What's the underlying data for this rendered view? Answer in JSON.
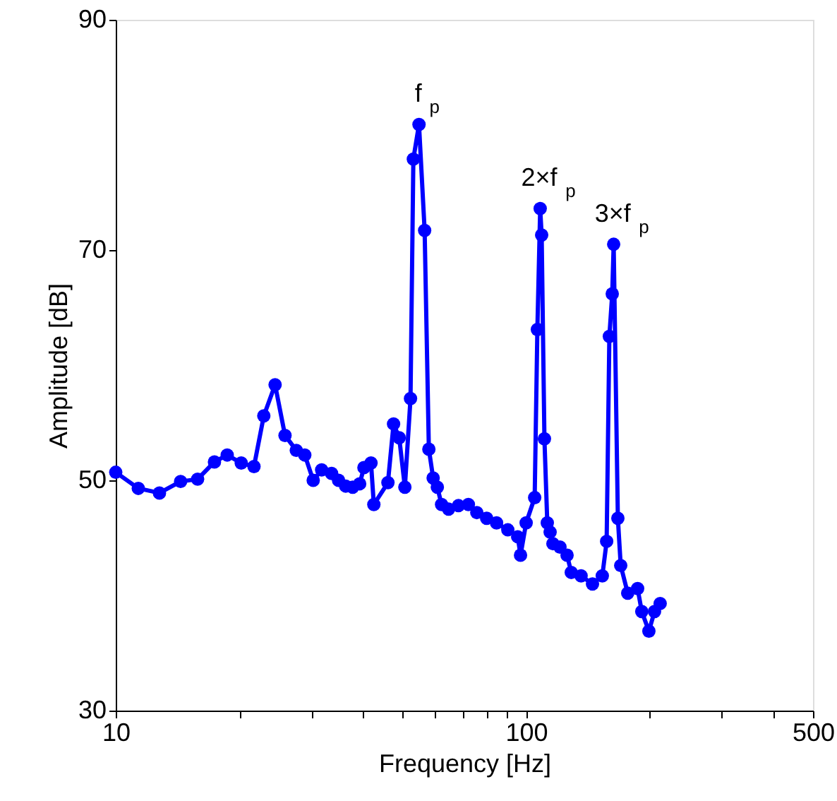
{
  "chart_data": {
    "type": "line",
    "xlabel": "Frequency [Hz]",
    "ylabel": "Amplitude [dB]",
    "x": [
      10,
      11.35,
      12.78,
      14.39,
      15.83,
      17.4,
      18.69,
      20.22,
      21.72,
      22.95,
      24.45,
      25.85,
      27.54,
      28.88,
      30.28,
      31.75,
      33.57,
      34.91,
      36.33,
      37.79,
      39.3,
      40.25,
      41.88,
      42.55,
      46.05,
      47.53,
      49.06,
      50.64,
      52.27,
      53.11,
      54.82,
      56.58,
      57.94,
      59.35,
      60.76,
      62.22,
      64.71,
      68.41,
      72.31,
      75.82,
      80.13,
      84.7,
      90.22,
      95.37,
      96.9,
      100,
      104.9,
      106.5,
      108.2,
      109.1,
      110.8,
      112.6,
      114.4,
      116.2,
      120.9,
      125.8,
      128.8,
      136.1,
      145.1,
      153.3,
      157.1,
      159.5,
      162.1,
      163.4,
      167.3,
      170,
      176.8,
      186.9,
      191.3,
      199.1,
      205.5,
      212.1
    ],
    "series": [
      {
        "color": "#0000ff",
        "values": [
          50.7,
          49.3,
          48.9,
          49.9,
          50.1,
          51.6,
          52.2,
          51.5,
          51.2,
          55.6,
          58.3,
          53.9,
          52.6,
          52.2,
          50.0,
          50.9,
          50.6,
          50.0,
          49.5,
          49.4,
          49.7,
          51.1,
          51.5,
          47.9,
          49.8,
          54.9,
          53.7,
          49.4,
          57.1,
          77.9,
          80.9,
          71.7,
          52.7,
          50.2,
          49.4,
          47.9,
          47.5,
          47.8,
          47.9,
          47.2,
          46.7,
          46.3,
          45.7,
          45.1,
          43.5,
          46.3,
          48.5,
          63.1,
          73.6,
          71.3,
          53.6,
          46.3,
          45.5,
          44.5,
          44.2,
          43.5,
          42.0,
          41.7,
          41.0,
          41.7,
          44.7,
          62.5,
          66.2,
          70.5,
          46.7,
          42.6,
          40.2,
          40.6,
          38.6,
          36.9,
          38.6,
          39.3
        ]
      }
    ],
    "xlim": [
      10,
      500
    ],
    "ylim": [
      30,
      90
    ],
    "log": "x",
    "xticks": [
      10,
      {
        "value": 20,
        "label": null
      },
      {
        "value": 30,
        "label": null
      },
      {
        "value": 40,
        "label": null
      },
      {
        "value": 50,
        "label": null
      },
      {
        "value": 60,
        "label": null
      },
      {
        "value": 70,
        "label": null
      },
      {
        "value": 80,
        "label": null
      },
      {
        "value": 90,
        "label": null
      },
      100,
      {
        "value": 200,
        "label": null
      },
      {
        "value": 300,
        "label": null
      },
      {
        "value": 400,
        "label": null
      },
      500
    ],
    "yticks": [
      30,
      50,
      70,
      90
    ],
    "grid": false,
    "marker": "circle",
    "line_style": "solid",
    "annotations": [
      {
        "text": "f$_{p}$",
        "x": 54.82,
        "y": 80.9
      },
      {
        "text": "2×f$_{p}$",
        "x": 108.2,
        "y": 73.6
      },
      {
        "text": "3×f$_{p}$",
        "x": 163.4,
        "y": 70.5
      }
    ]
  }
}
